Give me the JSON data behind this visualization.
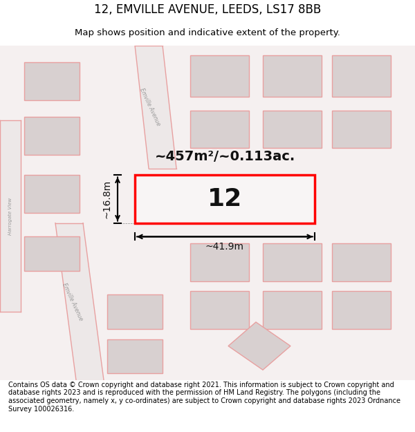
{
  "title": "12, EMVILLE AVENUE, LEEDS, LS17 8BB",
  "subtitle": "Map shows position and indicative extent of the property.",
  "footer": "Contains OS data © Crown copyright and database right 2021. This information is subject to Crown copyright and database rights 2023 and is reproduced with the permission of HM Land Registry. The polygons (including the associated geometry, namely x, y co-ordinates) are subject to Crown copyright and database rights 2023 Ordnance Survey 100026316.",
  "area_label": "~457m²/~0.113ac.",
  "plot_number": "12",
  "width_label": "~41.9m",
  "height_label": "~16.8m",
  "road_color": "#e8a0a0",
  "road_fill": "#ede8e8",
  "building_fill": "#d8d0d0",
  "highlight_color": "#ff0000",
  "map_bg": "#f5f0f0",
  "title_fontsize": 12,
  "subtitle_fontsize": 9.5,
  "footer_fontsize": 7.0
}
